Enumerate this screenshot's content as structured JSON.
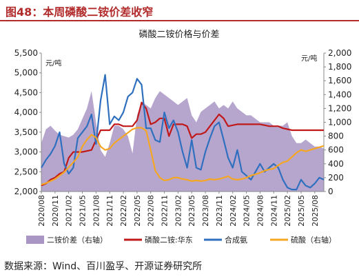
{
  "figure_title": "图48：本周磷酸二铵价差收窄",
  "source": "数据来源：Wind、百川盈孚、开源证券研究所",
  "chart_data": {
    "type": "line",
    "title": "磷酸二铵价格与价差",
    "left_unit": "元/吨",
    "right_unit": "元/吨",
    "y_left": {
      "min": 2000,
      "max": 5500,
      "ticks": [
        "2,000",
        "2,500",
        "3,000",
        "3,500",
        "4,000",
        "4,500",
        "5,000",
        "5,500"
      ]
    },
    "y_right": {
      "min": 0,
      "max": 2000,
      "ticks": [
        "0",
        "200",
        "400",
        "600",
        "800",
        "1,000",
        "1,200",
        "1,400",
        "1,600",
        "1,800",
        "2,000"
      ]
    },
    "x_range": [
      2020.583,
      2025.75
    ],
    "x_ticks": [
      "2020/08",
      "2020/11",
      "2021/02",
      "2021/05",
      "2021/08",
      "2021/11",
      "2022/02",
      "2022/05",
      "2022/08",
      "2022/11",
      "2023/02",
      "2023/05",
      "2023/08",
      "2023/11",
      "2024/02",
      "2024/05",
      "2024/08",
      "2024/11",
      "2025/02",
      "2025/05",
      "2025/08"
    ],
    "legend": [
      {
        "name": "二铵价差（右轴）",
        "color": "#a996c4"
      },
      {
        "name": "磷酸二铵:华东",
        "color": "#c01818"
      },
      {
        "name": "合成氨",
        "color": "#2f6fbf"
      },
      {
        "name": "硫酸（右轴）",
        "color": "#f5a623"
      }
    ],
    "series": [
      {
        "key": "spread",
        "axis": "right",
        "color": "#a996c4",
        "points": [
          [
            2020.583,
            700
          ],
          [
            2020.667,
            900
          ],
          [
            2020.75,
            950
          ],
          [
            2020.833,
            880
          ],
          [
            2020.917,
            820
          ],
          [
            2021.0,
            800
          ],
          [
            2021.083,
            780
          ],
          [
            2021.167,
            820
          ],
          [
            2021.25,
            900
          ],
          [
            2021.333,
            1050
          ],
          [
            2021.417,
            1200
          ],
          [
            2021.5,
            1450
          ],
          [
            2021.583,
            1000
          ],
          [
            2021.667,
            600
          ],
          [
            2021.75,
            500
          ],
          [
            2021.833,
            700
          ],
          [
            2021.917,
            950
          ],
          [
            2022.0,
            950
          ],
          [
            2022.083,
            900
          ],
          [
            2022.167,
            800
          ],
          [
            2022.25,
            550
          ],
          [
            2022.333,
            1100
          ],
          [
            2022.417,
            1300
          ],
          [
            2022.5,
            1250
          ],
          [
            2022.583,
            1200
          ],
          [
            2022.667,
            1350
          ],
          [
            2022.75,
            1450
          ],
          [
            2022.833,
            1400
          ],
          [
            2022.917,
            1350
          ],
          [
            2023.0,
            1300
          ],
          [
            2023.083,
            1250
          ],
          [
            2023.167,
            1300
          ],
          [
            2023.25,
            1350
          ],
          [
            2023.333,
            1100
          ],
          [
            2023.417,
            1000
          ],
          [
            2023.5,
            1150
          ],
          [
            2023.583,
            1200
          ],
          [
            2023.667,
            1250
          ],
          [
            2023.75,
            1300
          ],
          [
            2023.833,
            1200
          ],
          [
            2023.917,
            1250
          ],
          [
            2024.0,
            1200
          ],
          [
            2024.083,
            1300
          ],
          [
            2024.167,
            1200
          ],
          [
            2024.25,
            1150
          ],
          [
            2024.333,
            1100
          ],
          [
            2024.417,
            1100
          ],
          [
            2024.5,
            1050
          ],
          [
            2024.583,
            1000
          ],
          [
            2024.667,
            1000
          ],
          [
            2024.75,
            1000
          ],
          [
            2024.833,
            950
          ],
          [
            2024.917,
            950
          ],
          [
            2025.0,
            950
          ],
          [
            2025.083,
            1000
          ],
          [
            2025.167,
            800
          ],
          [
            2025.25,
            700
          ],
          [
            2025.333,
            700
          ],
          [
            2025.417,
            750
          ],
          [
            2025.5,
            700
          ],
          [
            2025.583,
            650
          ],
          [
            2025.667,
            650
          ],
          [
            2025.75,
            620
          ]
        ]
      },
      {
        "key": "dap",
        "axis": "left",
        "color": "#c01818",
        "points": [
          [
            2020.583,
            2150
          ],
          [
            2020.667,
            2200
          ],
          [
            2020.75,
            2300
          ],
          [
            2020.833,
            2350
          ],
          [
            2020.917,
            2450
          ],
          [
            2021.0,
            2500
          ],
          [
            2021.083,
            2850
          ],
          [
            2021.167,
            3000
          ],
          [
            2021.333,
            3000
          ],
          [
            2021.5,
            3050
          ],
          [
            2021.583,
            3300
          ],
          [
            2021.667,
            3550
          ],
          [
            2021.833,
            3550
          ],
          [
            2021.917,
            3700
          ],
          [
            2022.0,
            3700
          ],
          [
            2022.083,
            3650
          ],
          [
            2022.25,
            3650
          ],
          [
            2022.333,
            3800
          ],
          [
            2022.417,
            4250
          ],
          [
            2022.5,
            4100
          ],
          [
            2022.583,
            3700
          ],
          [
            2022.667,
            3750
          ],
          [
            2022.75,
            3850
          ],
          [
            2022.833,
            3850
          ],
          [
            2022.917,
            3400
          ],
          [
            2023.0,
            3700
          ],
          [
            2023.083,
            3700
          ],
          [
            2023.167,
            3700
          ],
          [
            2023.25,
            3650
          ],
          [
            2023.333,
            3350
          ],
          [
            2023.417,
            3450
          ],
          [
            2023.5,
            3450
          ],
          [
            2023.583,
            3500
          ],
          [
            2023.667,
            3650
          ],
          [
            2023.75,
            3800
          ],
          [
            2023.833,
            3950
          ],
          [
            2023.917,
            3850
          ],
          [
            2024.0,
            3650
          ],
          [
            2024.167,
            3700
          ],
          [
            2024.333,
            3700
          ],
          [
            2024.583,
            3700
          ],
          [
            2024.75,
            3650
          ],
          [
            2024.917,
            3650
          ],
          [
            2025.0,
            3600
          ],
          [
            2025.167,
            3550
          ],
          [
            2025.25,
            3550
          ],
          [
            2025.417,
            3550
          ],
          [
            2025.583,
            3550
          ],
          [
            2025.75,
            3550
          ]
        ]
      },
      {
        "key": "ammonia",
        "axis": "left",
        "color": "#2f6fbf",
        "points": [
          [
            2020.583,
            2600
          ],
          [
            2020.667,
            2800
          ],
          [
            2020.75,
            2950
          ],
          [
            2020.833,
            3150
          ],
          [
            2020.917,
            3500
          ],
          [
            2021.0,
            2700
          ],
          [
            2021.083,
            2450
          ],
          [
            2021.167,
            2600
          ],
          [
            2021.25,
            3350
          ],
          [
            2021.333,
            3500
          ],
          [
            2021.417,
            3650
          ],
          [
            2021.5,
            3950
          ],
          [
            2021.583,
            3200
          ],
          [
            2021.667,
            4300
          ],
          [
            2021.75,
            4950
          ],
          [
            2021.833,
            3700
          ],
          [
            2021.917,
            3900
          ],
          [
            2022.0,
            3800
          ],
          [
            2022.083,
            4000
          ],
          [
            2022.167,
            4400
          ],
          [
            2022.25,
            4500
          ],
          [
            2022.333,
            4850
          ],
          [
            2022.417,
            4700
          ],
          [
            2022.5,
            3600
          ],
          [
            2022.583,
            3600
          ],
          [
            2022.667,
            3300
          ],
          [
            2022.75,
            3250
          ],
          [
            2022.833,
            4000
          ],
          [
            2022.917,
            3600
          ],
          [
            2023.0,
            3800
          ],
          [
            2023.083,
            3500
          ],
          [
            2023.167,
            3000
          ],
          [
            2023.25,
            2600
          ],
          [
            2023.333,
            3300
          ],
          [
            2023.417,
            2600
          ],
          [
            2023.5,
            2550
          ],
          [
            2023.583,
            3000
          ],
          [
            2023.667,
            3350
          ],
          [
            2023.75,
            3650
          ],
          [
            2023.833,
            3750
          ],
          [
            2023.917,
            3300
          ],
          [
            2024.0,
            2850
          ],
          [
            2024.083,
            2600
          ],
          [
            2024.167,
            3050
          ],
          [
            2024.25,
            2500
          ],
          [
            2024.333,
            2400
          ],
          [
            2024.417,
            2300
          ],
          [
            2024.5,
            2500
          ],
          [
            2024.583,
            2700
          ],
          [
            2024.667,
            2500
          ],
          [
            2024.75,
            2600
          ],
          [
            2024.833,
            2700
          ],
          [
            2024.917,
            2600
          ],
          [
            2025.0,
            2300
          ],
          [
            2025.083,
            2100
          ],
          [
            2025.167,
            2050
          ],
          [
            2025.25,
            2050
          ],
          [
            2025.333,
            2300
          ],
          [
            2025.417,
            2150
          ],
          [
            2025.5,
            2100
          ],
          [
            2025.583,
            2200
          ],
          [
            2025.667,
            2350
          ],
          [
            2025.75,
            2300
          ]
        ]
      },
      {
        "key": "sulfuric",
        "axis": "right",
        "color": "#f5a623",
        "points": [
          [
            2020.583,
            100
          ],
          [
            2020.667,
            120
          ],
          [
            2020.75,
            150
          ],
          [
            2020.833,
            180
          ],
          [
            2020.917,
            230
          ],
          [
            2021.0,
            280
          ],
          [
            2021.083,
            350
          ],
          [
            2021.167,
            420
          ],
          [
            2021.25,
            500
          ],
          [
            2021.333,
            650
          ],
          [
            2021.417,
            750
          ],
          [
            2021.5,
            820
          ],
          [
            2021.583,
            780
          ],
          [
            2021.667,
            650
          ],
          [
            2021.75,
            600
          ],
          [
            2021.833,
            620
          ],
          [
            2021.917,
            700
          ],
          [
            2022.0,
            750
          ],
          [
            2022.083,
            800
          ],
          [
            2022.167,
            850
          ],
          [
            2022.25,
            900
          ],
          [
            2022.333,
            920
          ],
          [
            2022.417,
            920
          ],
          [
            2022.5,
            880
          ],
          [
            2022.583,
            600
          ],
          [
            2022.667,
            300
          ],
          [
            2022.75,
            200
          ],
          [
            2022.833,
            160
          ],
          [
            2022.917,
            170
          ],
          [
            2023.0,
            200
          ],
          [
            2023.083,
            200
          ],
          [
            2023.167,
            180
          ],
          [
            2023.25,
            170
          ],
          [
            2023.333,
            150
          ],
          [
            2023.417,
            160
          ],
          [
            2023.5,
            150
          ],
          [
            2023.583,
            160
          ],
          [
            2023.667,
            180
          ],
          [
            2023.75,
            170
          ],
          [
            2023.833,
            180
          ],
          [
            2023.917,
            200
          ],
          [
            2024.0,
            220
          ],
          [
            2024.083,
            180
          ],
          [
            2024.167,
            170
          ],
          [
            2024.25,
            180
          ],
          [
            2024.333,
            200
          ],
          [
            2024.417,
            230
          ],
          [
            2024.5,
            250
          ],
          [
            2024.583,
            270
          ],
          [
            2024.667,
            300
          ],
          [
            2024.75,
            320
          ],
          [
            2024.833,
            330
          ],
          [
            2024.917,
            380
          ],
          [
            2025.0,
            420
          ],
          [
            2025.083,
            440
          ],
          [
            2025.167,
            500
          ],
          [
            2025.25,
            560
          ],
          [
            2025.333,
            600
          ],
          [
            2025.417,
            580
          ],
          [
            2025.5,
            600
          ],
          [
            2025.583,
            620
          ],
          [
            2025.667,
            640
          ],
          [
            2025.75,
            660
          ]
        ]
      }
    ]
  }
}
